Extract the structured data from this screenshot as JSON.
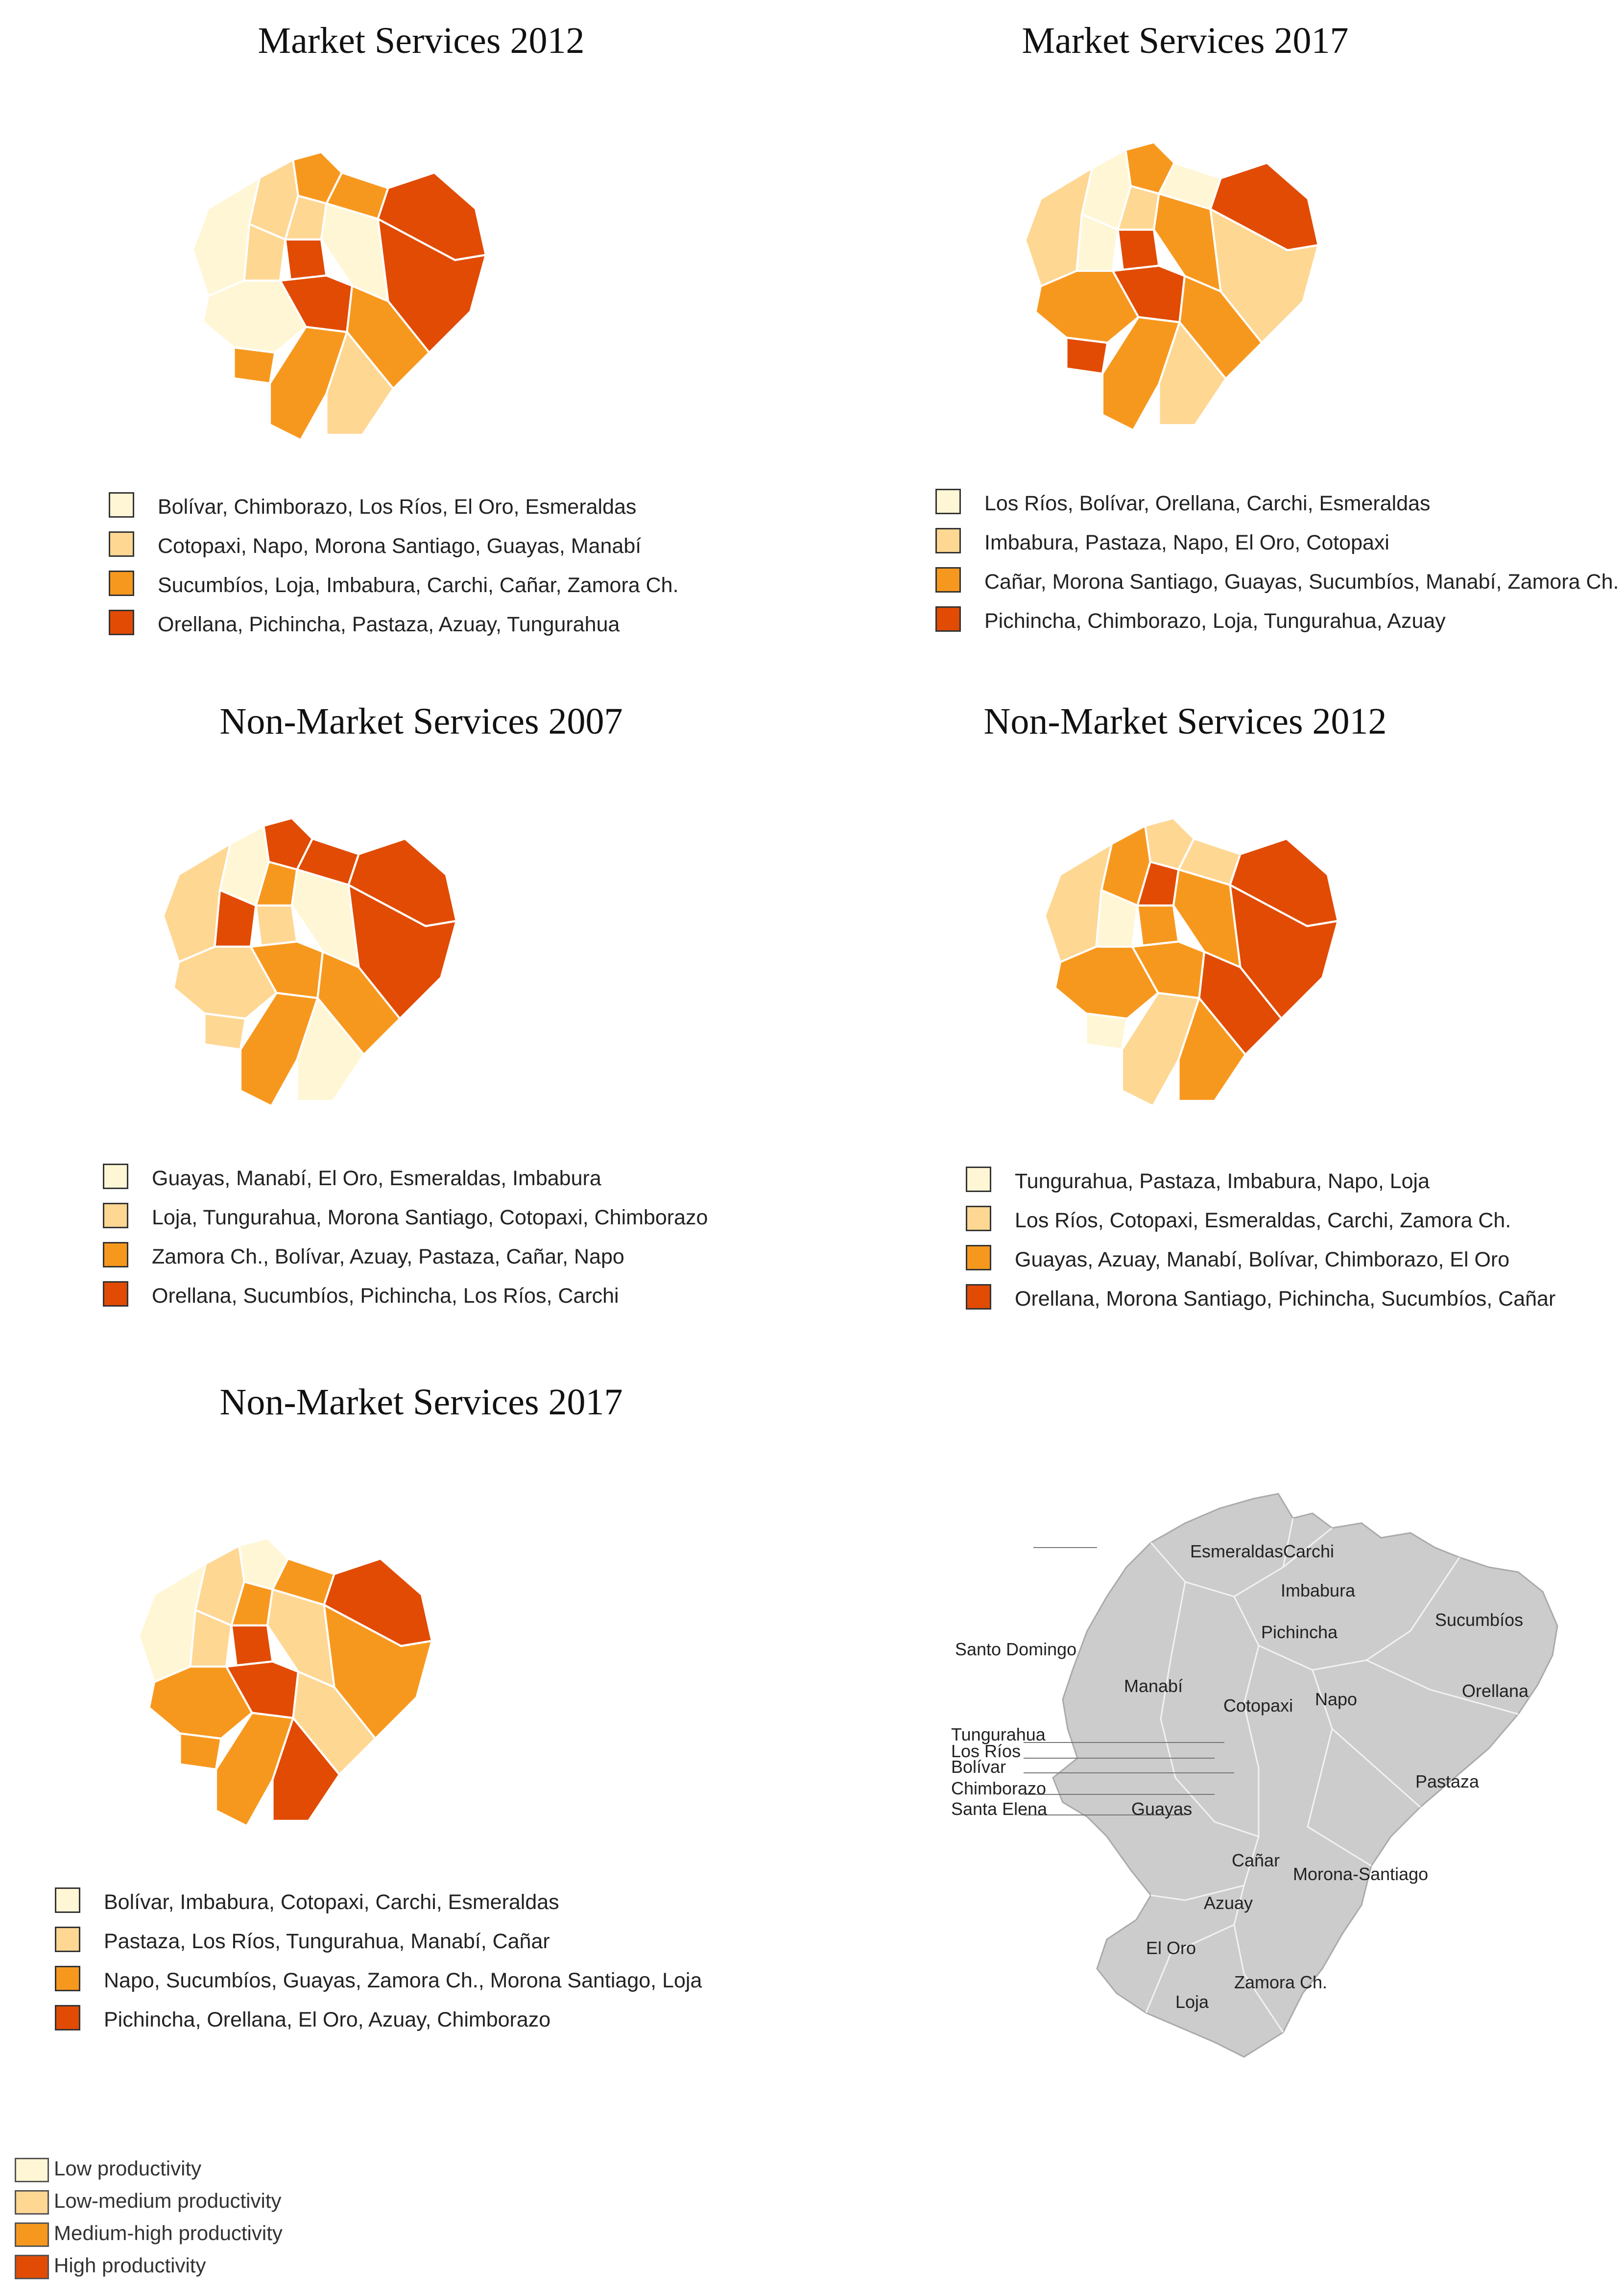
{
  "colors": {
    "low": "#fff6d5",
    "low_medium": "#fed793",
    "medium_high": "#f7981e",
    "high": "#e14b04",
    "reference_fill": "#cccccc"
  },
  "panels": [
    {
      "title": "Market Services 2012",
      "legend": [
        "Bolívar, Chimborazo, Los Ríos, El Oro, Esmeraldas",
        "Cotopaxi, Napo, Morona Santiago, Guayas, Manabí",
        "Sucumbíos, Loja, Imbabura, Carchi, Cañar, Zamora Ch.",
        "Orellana, Pichincha, Pastaza, Azuay, Tungurahua"
      ]
    },
    {
      "title": "Market Services 2017",
      "legend": [
        "Los Ríos, Bolívar, Orellana, Carchi, Esmeraldas",
        "Imbabura, Pastaza, Napo, El Oro, Cotopaxi",
        "Cañar, Morona Santiago, Guayas, Sucumbíos, Manabí, Zamora Ch.",
        "Pichincha, Chimborazo, Loja, Tungurahua, Azuay"
      ]
    },
    {
      "title": "Non-Market Services 2007",
      "legend": [
        "Guayas, Manabí, El Oro, Esmeraldas, Imbabura",
        "Loja, Tungurahua, Morona Santiago, Cotopaxi, Chimborazo",
        "Zamora Ch., Bolívar, Azuay, Pastaza, Cañar, Napo",
        "Orellana, Sucumbíos, Pichincha, Los Ríos, Carchi"
      ]
    },
    {
      "title": "Non-Market Services 2012",
      "legend": [
        "Tungurahua, Pastaza, Imbabura, Napo, Loja",
        "Los Ríos, Cotopaxi, Esmeraldas, Carchi, Zamora Ch.",
        "Guayas, Azuay, Manabí, Bolívar, Chimborazo, El Oro",
        "Orellana, Morona Santiago, Pichincha, Sucumbíos, Cañar"
      ]
    },
    {
      "title": "Non-Market Services 2017",
      "legend": [
        "Bolívar, Imbabura, Cotopaxi, Carchi, Esmeraldas",
        "Pastaza, Los Ríos, Tungurahua, Manabí, Cañar",
        "Napo, Sucumbíos, Guayas, Zamora Ch., Morona Santiago, Loja",
        "Pichincha, Orellana, El Oro, Azuay, Chimborazo"
      ]
    }
  ],
  "map_fills": [
    [
      "medium_high",
      "medium_high",
      "high",
      "high",
      "low_medium",
      "low",
      "low_medium",
      "low_medium",
      "low",
      "high",
      "high",
      "medium_high",
      "low",
      "medium_high",
      "medium_high",
      "low_medium"
    ],
    [
      "medium_high",
      "low",
      "high",
      "low_medium",
      "low",
      "low_medium",
      "low",
      "low_medium",
      "medium_high",
      "high",
      "high",
      "medium_high",
      "medium_high",
      "high",
      "medium_high",
      "low_medium"
    ],
    [
      "high",
      "high",
      "high",
      "high",
      "low",
      "low_medium",
      "high",
      "medium_high",
      "low",
      "low_medium",
      "medium_high",
      "medium_high",
      "low_medium",
      "low_medium",
      "medium_high",
      "low"
    ],
    [
      "low_medium",
      "low_medium",
      "high",
      "high",
      "medium_high",
      "low_medium",
      "low",
      "high",
      "medium_high",
      "medium_high",
      "medium_high",
      "high",
      "medium_high",
      "low",
      "low_medium",
      "medium_high"
    ],
    [
      "low",
      "medium_high",
      "high",
      "medium_high",
      "low_medium",
      "low",
      "low_medium",
      "medium_high",
      "low_medium",
      "high",
      "high",
      "low_medium",
      "medium_high",
      "medium_high",
      "medium_high",
      "high"
    ]
  ],
  "reference_map": {
    "labels": [
      "Esmeraldas",
      "Carchi",
      "Imbabura",
      "Sucumbíos",
      "Santo Domingo",
      "Pichincha",
      "Manabí",
      "Orellana",
      "Napo",
      "Cotopaxi",
      "Tungurahua",
      "Los Ríos",
      "Bolívar",
      "Chimborazo",
      "Santa Elena",
      "Pastaza",
      "Guayas",
      "Cañar",
      "Morona-Santiago",
      "Azuay",
      "El Oro",
      "Zamora Ch.",
      "Loja"
    ]
  },
  "productivity_key": [
    "Low productivity",
    "Low-medium productivity",
    "Medium-high productivity",
    "High productivity"
  ]
}
